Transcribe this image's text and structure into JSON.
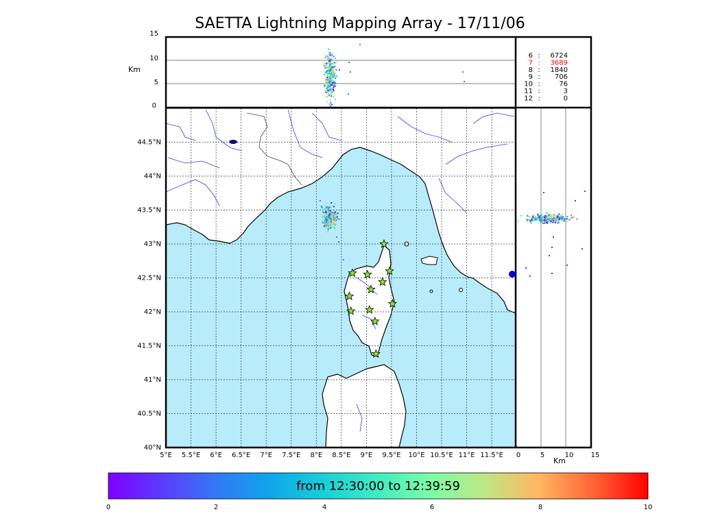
{
  "title": "SAETTA Lightning Mapping Array - 17/11/06",
  "colorbar": {
    "label": "from 12:30:00 to 12:39:59",
    "ticks": [
      "0",
      "2",
      "4",
      "6",
      "8",
      "10"
    ]
  },
  "map": {
    "lon_ticks": [
      "5°E",
      "5.5°E",
      "6°E",
      "6.5°E",
      "7°E",
      "7.5°E",
      "8°E",
      "8.5°E",
      "9°E",
      "9.5°E",
      "10°E",
      "10.5°E",
      "11°E",
      "11.5°E"
    ],
    "lat_ticks": [
      "40°N",
      "40.5°N",
      "41°N",
      "41.5°N",
      "42°N",
      "42.5°N",
      "43°N",
      "43.5°N",
      "44°N",
      "44.5°N"
    ],
    "sea_color": "#b8ecfb",
    "land_color": "#ffffff",
    "river_color": "#3a3af0"
  },
  "top_panel": {
    "ylabel": "Km",
    "yticks": [
      "0",
      "5",
      "10",
      "15"
    ]
  },
  "side_panel": {
    "xlabel": "Km",
    "xticks": [
      "0",
      "5",
      "10",
      "15"
    ]
  },
  "station_stats": [
    {
      "label": "6",
      "sep": ":",
      "value": "6724",
      "color": "#000000"
    },
    {
      "label": "7",
      "sep": ":",
      "value": "3689",
      "color": "#ff0000"
    },
    {
      "label": "8",
      "sep": ":",
      "value": "1840",
      "color": "#000000"
    },
    {
      "label": "9",
      "sep": ":",
      "value": "706",
      "color": "#000000"
    },
    {
      "label": "10",
      "sep": ":",
      "value": "76",
      "color": "#000000"
    },
    {
      "label": "11",
      "sep": ":",
      "value": "3",
      "color": "#000000"
    },
    {
      "label": "12",
      "sep": ":",
      "value": "0",
      "color": "#000000"
    }
  ],
  "stations": [
    {
      "lon": 9.35,
      "lat": 43.0
    },
    {
      "lon": 8.72,
      "lat": 42.57
    },
    {
      "lon": 9.02,
      "lat": 42.55
    },
    {
      "lon": 9.46,
      "lat": 42.6
    },
    {
      "lon": 9.32,
      "lat": 42.44
    },
    {
      "lon": 9.09,
      "lat": 42.33
    },
    {
      "lon": 8.66,
      "lat": 42.23
    },
    {
      "lon": 9.52,
      "lat": 42.12
    },
    {
      "lon": 8.69,
      "lat": 42.01
    },
    {
      "lon": 9.06,
      "lat": 42.03
    },
    {
      "lon": 9.17,
      "lat": 41.86
    },
    {
      "lon": 9.19,
      "lat": 41.38
    }
  ]
}
